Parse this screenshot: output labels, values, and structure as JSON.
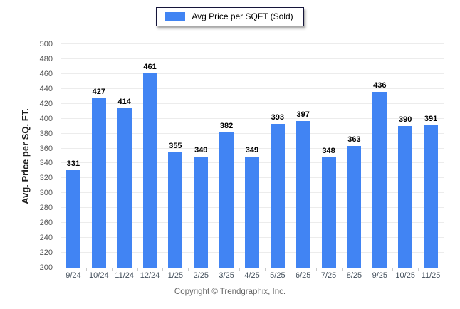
{
  "legend": {
    "label": "Avg Price per SQFT (Sold)"
  },
  "footer": {
    "copyright": "Copyright © Trendgraphix, Inc."
  },
  "chart_data": {
    "type": "bar",
    "title": "",
    "ylabel": "Avg. Price per SQ. FT.",
    "xlabel": "",
    "categories": [
      "9/24",
      "10/24",
      "11/24",
      "12/24",
      "1/25",
      "2/25",
      "3/25",
      "4/25",
      "5/25",
      "6/25",
      "7/25",
      "8/25",
      "9/25",
      "10/25",
      "11/25"
    ],
    "values": [
      331,
      427,
      414,
      461,
      355,
      349,
      382,
      349,
      393,
      397,
      348,
      363,
      436,
      390,
      391
    ],
    "series_name": "Avg Price per SQFT (Sold)",
    "ylim": [
      200,
      500
    ],
    "ytick_step": 20,
    "grid": "horizontal",
    "legend_position": "top-center",
    "bar_color": "#4184F3",
    "gridline_color": "#ececec",
    "axis_color": "#c9c9c9"
  }
}
